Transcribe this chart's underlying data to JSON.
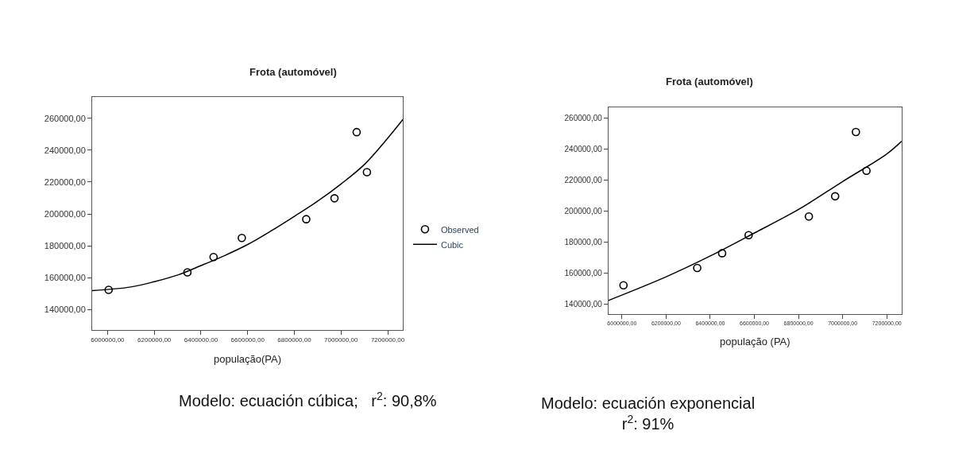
{
  "chart_data": [
    {
      "type": "scatter",
      "title": "Frota (automóvel)",
      "xlabel": "população(PA)",
      "xlim": [
        5934000,
        7265000
      ],
      "ylim": [
        127300,
        273300
      ],
      "xticks": [
        {
          "value": 6000000,
          "label": "6000000,00"
        },
        {
          "value": 6200000,
          "label": "6200000,00"
        },
        {
          "value": 6400000,
          "label": "6400000,00"
        },
        {
          "value": 6600000,
          "label": "6600000,00"
        },
        {
          "value": 6800000,
          "label": "6800000,00"
        },
        {
          "value": 7000000,
          "label": "7000000,00"
        },
        {
          "value": 7200000,
          "label": "7200000,00"
        }
      ],
      "yticks": [
        {
          "value": 140000,
          "label": "140000,00"
        },
        {
          "value": 160000,
          "label": "160000,00"
        },
        {
          "value": 180000,
          "label": "180000,00"
        },
        {
          "value": 200000,
          "label": "200000,00"
        },
        {
          "value": 220000,
          "label": "220000,00"
        },
        {
          "value": 240000,
          "label": "240000,00"
        },
        {
          "value": 260000,
          "label": "260000,00"
        }
      ],
      "legend": "right",
      "series": [
        {
          "name": "Observed",
          "marker": "circle",
          "color": "#000000",
          "x": [
            6004500,
            6342000,
            6454000,
            6575000,
            6851000,
            6972000,
            7067000,
            7111000
          ],
          "values": [
            152400,
            163400,
            173000,
            184900,
            196700,
            209800,
            251300,
            226200
          ]
        },
        {
          "name": "Cubic",
          "type": "line",
          "line_style": "solid",
          "color": "#000000",
          "x": [
            5934000,
            6100000,
            6200000,
            6300000,
            6400000,
            6500000,
            6600000,
            6700000,
            6800000,
            6900000,
            7000000,
            7100000,
            7200000,
            7265000
          ],
          "values": [
            151900,
            154200,
            157500,
            161700,
            167600,
            173800,
            180800,
            189300,
            198500,
            208000,
            218800,
            231000,
            247500,
            259200
          ]
        }
      ],
      "annotations": [
        "Modelo: ecuación cúbica;   r$^{2}$: 90,8%"
      ]
    },
    {
      "type": "scatter",
      "title": "Frota (automóvel)",
      "xlabel": "população (PA)",
      "xlim": [
        5938700,
        7267000
      ],
      "ylim": [
        133700,
        266500
      ],
      "xticks": [
        {
          "value": 6000000,
          "label": "6000000,00"
        },
        {
          "value": 6200000,
          "label": "6200000,00"
        },
        {
          "value": 6400000,
          "label": "6400000,00"
        },
        {
          "value": 6600000,
          "label": "6600000,00"
        },
        {
          "value": 6800000,
          "label": "6800000,00"
        },
        {
          "value": 7000000,
          "label": "7000000,00"
        },
        {
          "value": 7200000,
          "label": "7200000,00"
        }
      ],
      "yticks": [
        {
          "value": 140000,
          "label": "140000,00"
        },
        {
          "value": 160000,
          "label": "160000,00"
        },
        {
          "value": 180000,
          "label": "180000,00"
        },
        {
          "value": 200000,
          "label": "200000,00"
        },
        {
          "value": 220000,
          "label": "220000,00"
        },
        {
          "value": 240000,
          "label": "240000,00"
        },
        {
          "value": 260000,
          "label": "260000,00"
        }
      ],
      "series": [
        {
          "marker": "circle",
          "color": "#000000",
          "x": [
            6007000,
            6341000,
            6454000,
            6574000,
            6847000,
            6966000,
            7060000,
            7108000
          ],
          "values": [
            152300,
            163400,
            172900,
            184500,
            196500,
            209500,
            250800,
            225900
          ]
        },
        {
          "type": "line",
          "line_style": "solid",
          "color": "#000000",
          "x": [
            5938700,
            6200000,
            6400000,
            6600000,
            6800000,
            7000000,
            7200000,
            7267000
          ],
          "values": [
            142500,
            157700,
            171100,
            185900,
            201000,
            219000,
            236700,
            244900
          ]
        }
      ],
      "annotations": [
        "Modelo: ecuación exponencial\nr$^{2}$: 91%"
      ]
    }
  ]
}
